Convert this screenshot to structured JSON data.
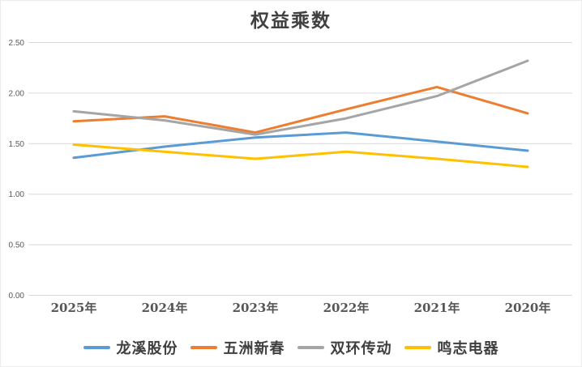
{
  "chart_data": {
    "type": "line",
    "title": "权益乘数",
    "categories": [
      "2025年",
      "2024年",
      "2023年",
      "2022年",
      "2021年",
      "2020年"
    ],
    "series": [
      {
        "name": "龙溪股份",
        "color": "#5B9BD5",
        "values": [
          1.36,
          1.47,
          1.56,
          1.61,
          1.52,
          1.43
        ]
      },
      {
        "name": "五洲新春",
        "color": "#ED7D31",
        "values": [
          1.72,
          1.77,
          1.61,
          1.84,
          2.06,
          1.8
        ]
      },
      {
        "name": "双环传动",
        "color": "#A5A5A5",
        "values": [
          1.82,
          1.73,
          1.59,
          1.75,
          1.97,
          2.32
        ]
      },
      {
        "name": "鸣志电器",
        "color": "#FFC000",
        "values": [
          1.49,
          1.42,
          1.35,
          1.42,
          1.35,
          1.27
        ]
      }
    ],
    "ylim": [
      0,
      2.5
    ],
    "ytick_step": 0.5,
    "ytick_labels": [
      "0.00",
      "0.50",
      "1.00",
      "1.50",
      "2.00",
      "2.50"
    ],
    "grid": true,
    "legend_position": "bottom",
    "colors": {
      "grid": "#D9D9D9",
      "ytick_text": "#595959",
      "xtick_text": "#555555",
      "title_text": "#404040",
      "background": "#FFFFFF"
    }
  }
}
